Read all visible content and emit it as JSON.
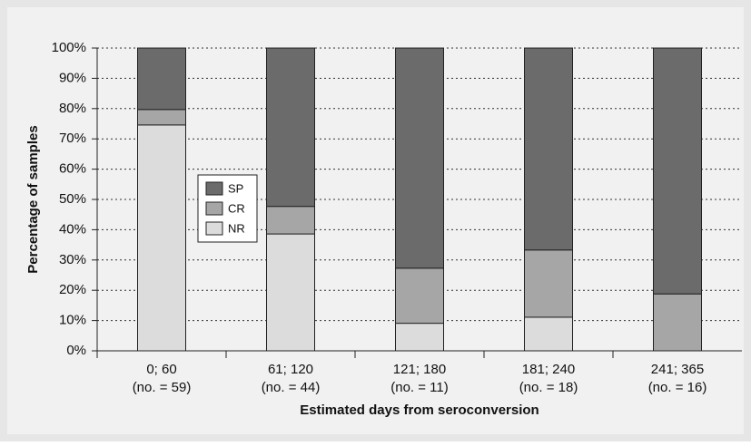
{
  "chart_data": {
    "type": "stacked_bar",
    "x_label": "Estimated days from seroconversion",
    "y_label": "Percentage of samples",
    "categories": [
      "0; 60",
      "61; 120",
      "121; 180",
      "181; 240",
      "241; 365"
    ],
    "category_counts": [
      "(no. = 59)",
      "(no. = 44)",
      "(no. = 11)",
      "(no. = 18)",
      "(no. = 16)"
    ],
    "series": [
      {
        "name": "NR",
        "color": "#dcdcdc",
        "values": [
          74.6,
          38.6,
          9.1,
          11.1,
          0
        ]
      },
      {
        "name": "CR",
        "color": "#a6a6a6",
        "values": [
          5.1,
          9.1,
          18.2,
          22.2,
          18.8
        ]
      },
      {
        "name": "SP",
        "color": "#6b6b6b",
        "values": [
          20.3,
          52.3,
          72.7,
          66.7,
          81.2
        ]
      }
    ],
    "ylim": [
      0,
      100
    ],
    "yticks": [
      {
        "value": 0,
        "label": "0%"
      },
      {
        "value": 10,
        "label": "10%"
      },
      {
        "value": 20,
        "label": "20%"
      },
      {
        "value": 30,
        "label": "30%"
      },
      {
        "value": 40,
        "label": "40%"
      },
      {
        "value": 50,
        "label": "50%"
      },
      {
        "value": 60,
        "label": "60%"
      },
      {
        "value": 70,
        "label": "70%"
      },
      {
        "value": 80,
        "label": "80%"
      },
      {
        "value": 90,
        "label": "90%"
      },
      {
        "value": 100,
        "label": "100%"
      }
    ],
    "grid": true
  }
}
